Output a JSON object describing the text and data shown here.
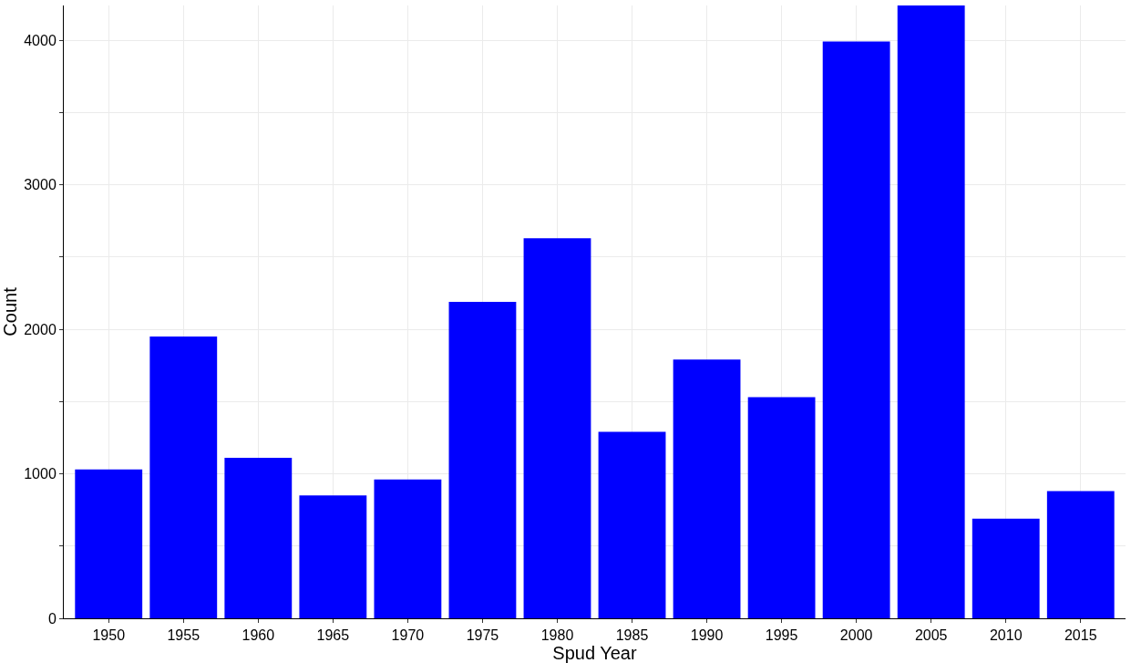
{
  "chart_data": {
    "type": "bar",
    "xlabel": "Spud Year",
    "ylabel": "Count",
    "categories": [
      "1950",
      "1955",
      "1960",
      "1965",
      "1970",
      "1975",
      "1980",
      "1985",
      "1990",
      "1995",
      "2000",
      "2005",
      "2010",
      "2015"
    ],
    "values": [
      1030,
      1950,
      1110,
      850,
      960,
      2190,
      2630,
      1290,
      1790,
      1530,
      3990,
      4240,
      690,
      880
    ],
    "color": "#0000ff",
    "ylim": [
      0,
      4240
    ],
    "yticks": [
      0,
      {
        "value": 500,
        "label": null
      },
      1000,
      {
        "value": 1500,
        "label": null
      },
      2000,
      {
        "value": 2500,
        "label": null
      },
      3000,
      {
        "value": 3500,
        "label": null
      },
      4000
    ],
    "grid": true
  }
}
